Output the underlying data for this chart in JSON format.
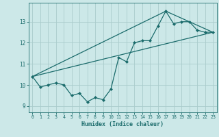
{
  "title": "",
  "xlabel": "Humidex (Indice chaleur)",
  "bg_color": "#cce8e8",
  "line_color": "#1a6b6b",
  "grid_color": "#aacccc",
  "xlim": [
    -0.5,
    23.5
  ],
  "ylim": [
    8.7,
    13.9
  ],
  "yticks": [
    9,
    10,
    11,
    12,
    13
  ],
  "xticks": [
    0,
    1,
    2,
    3,
    4,
    5,
    6,
    7,
    8,
    9,
    10,
    11,
    12,
    13,
    14,
    15,
    16,
    17,
    18,
    19,
    20,
    21,
    22,
    23
  ],
  "series1_x": [
    0,
    1,
    2,
    3,
    4,
    5,
    6,
    7,
    8,
    9,
    10,
    11,
    12,
    13,
    14,
    15,
    16,
    17,
    18,
    19,
    20,
    21,
    22,
    23
  ],
  "series1_y": [
    10.4,
    9.9,
    10.0,
    10.1,
    10.0,
    9.5,
    9.6,
    9.2,
    9.4,
    9.3,
    9.8,
    11.3,
    11.1,
    12.0,
    12.1,
    12.1,
    12.8,
    13.5,
    12.9,
    13.0,
    13.0,
    12.6,
    12.5,
    12.5
  ],
  "series2_x": [
    0,
    23
  ],
  "series2_y": [
    10.4,
    12.5
  ],
  "series3_x": [
    0,
    17,
    23
  ],
  "series3_y": [
    10.4,
    13.5,
    12.5
  ]
}
